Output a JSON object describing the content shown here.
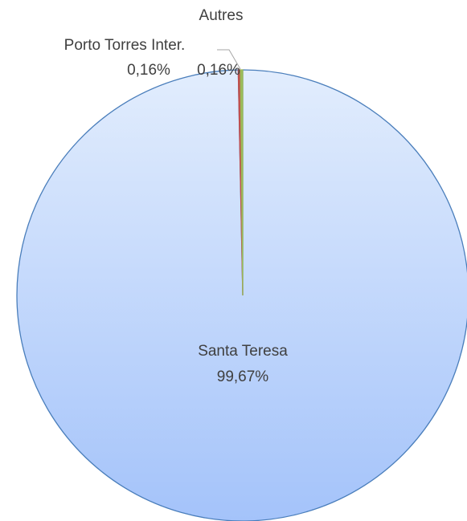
{
  "chart_data": {
    "type": "pie",
    "categories": [
      "Santa Teresa",
      "Porto Torres Inter.",
      "Autres"
    ],
    "values": [
      99.67,
      0.16,
      0.16
    ],
    "value_labels": [
      "99,67%",
      "0,16%",
      "0,16%"
    ],
    "colors": [
      "#a9c8fb",
      "#c0504d",
      "#9bbb59"
    ]
  }
}
